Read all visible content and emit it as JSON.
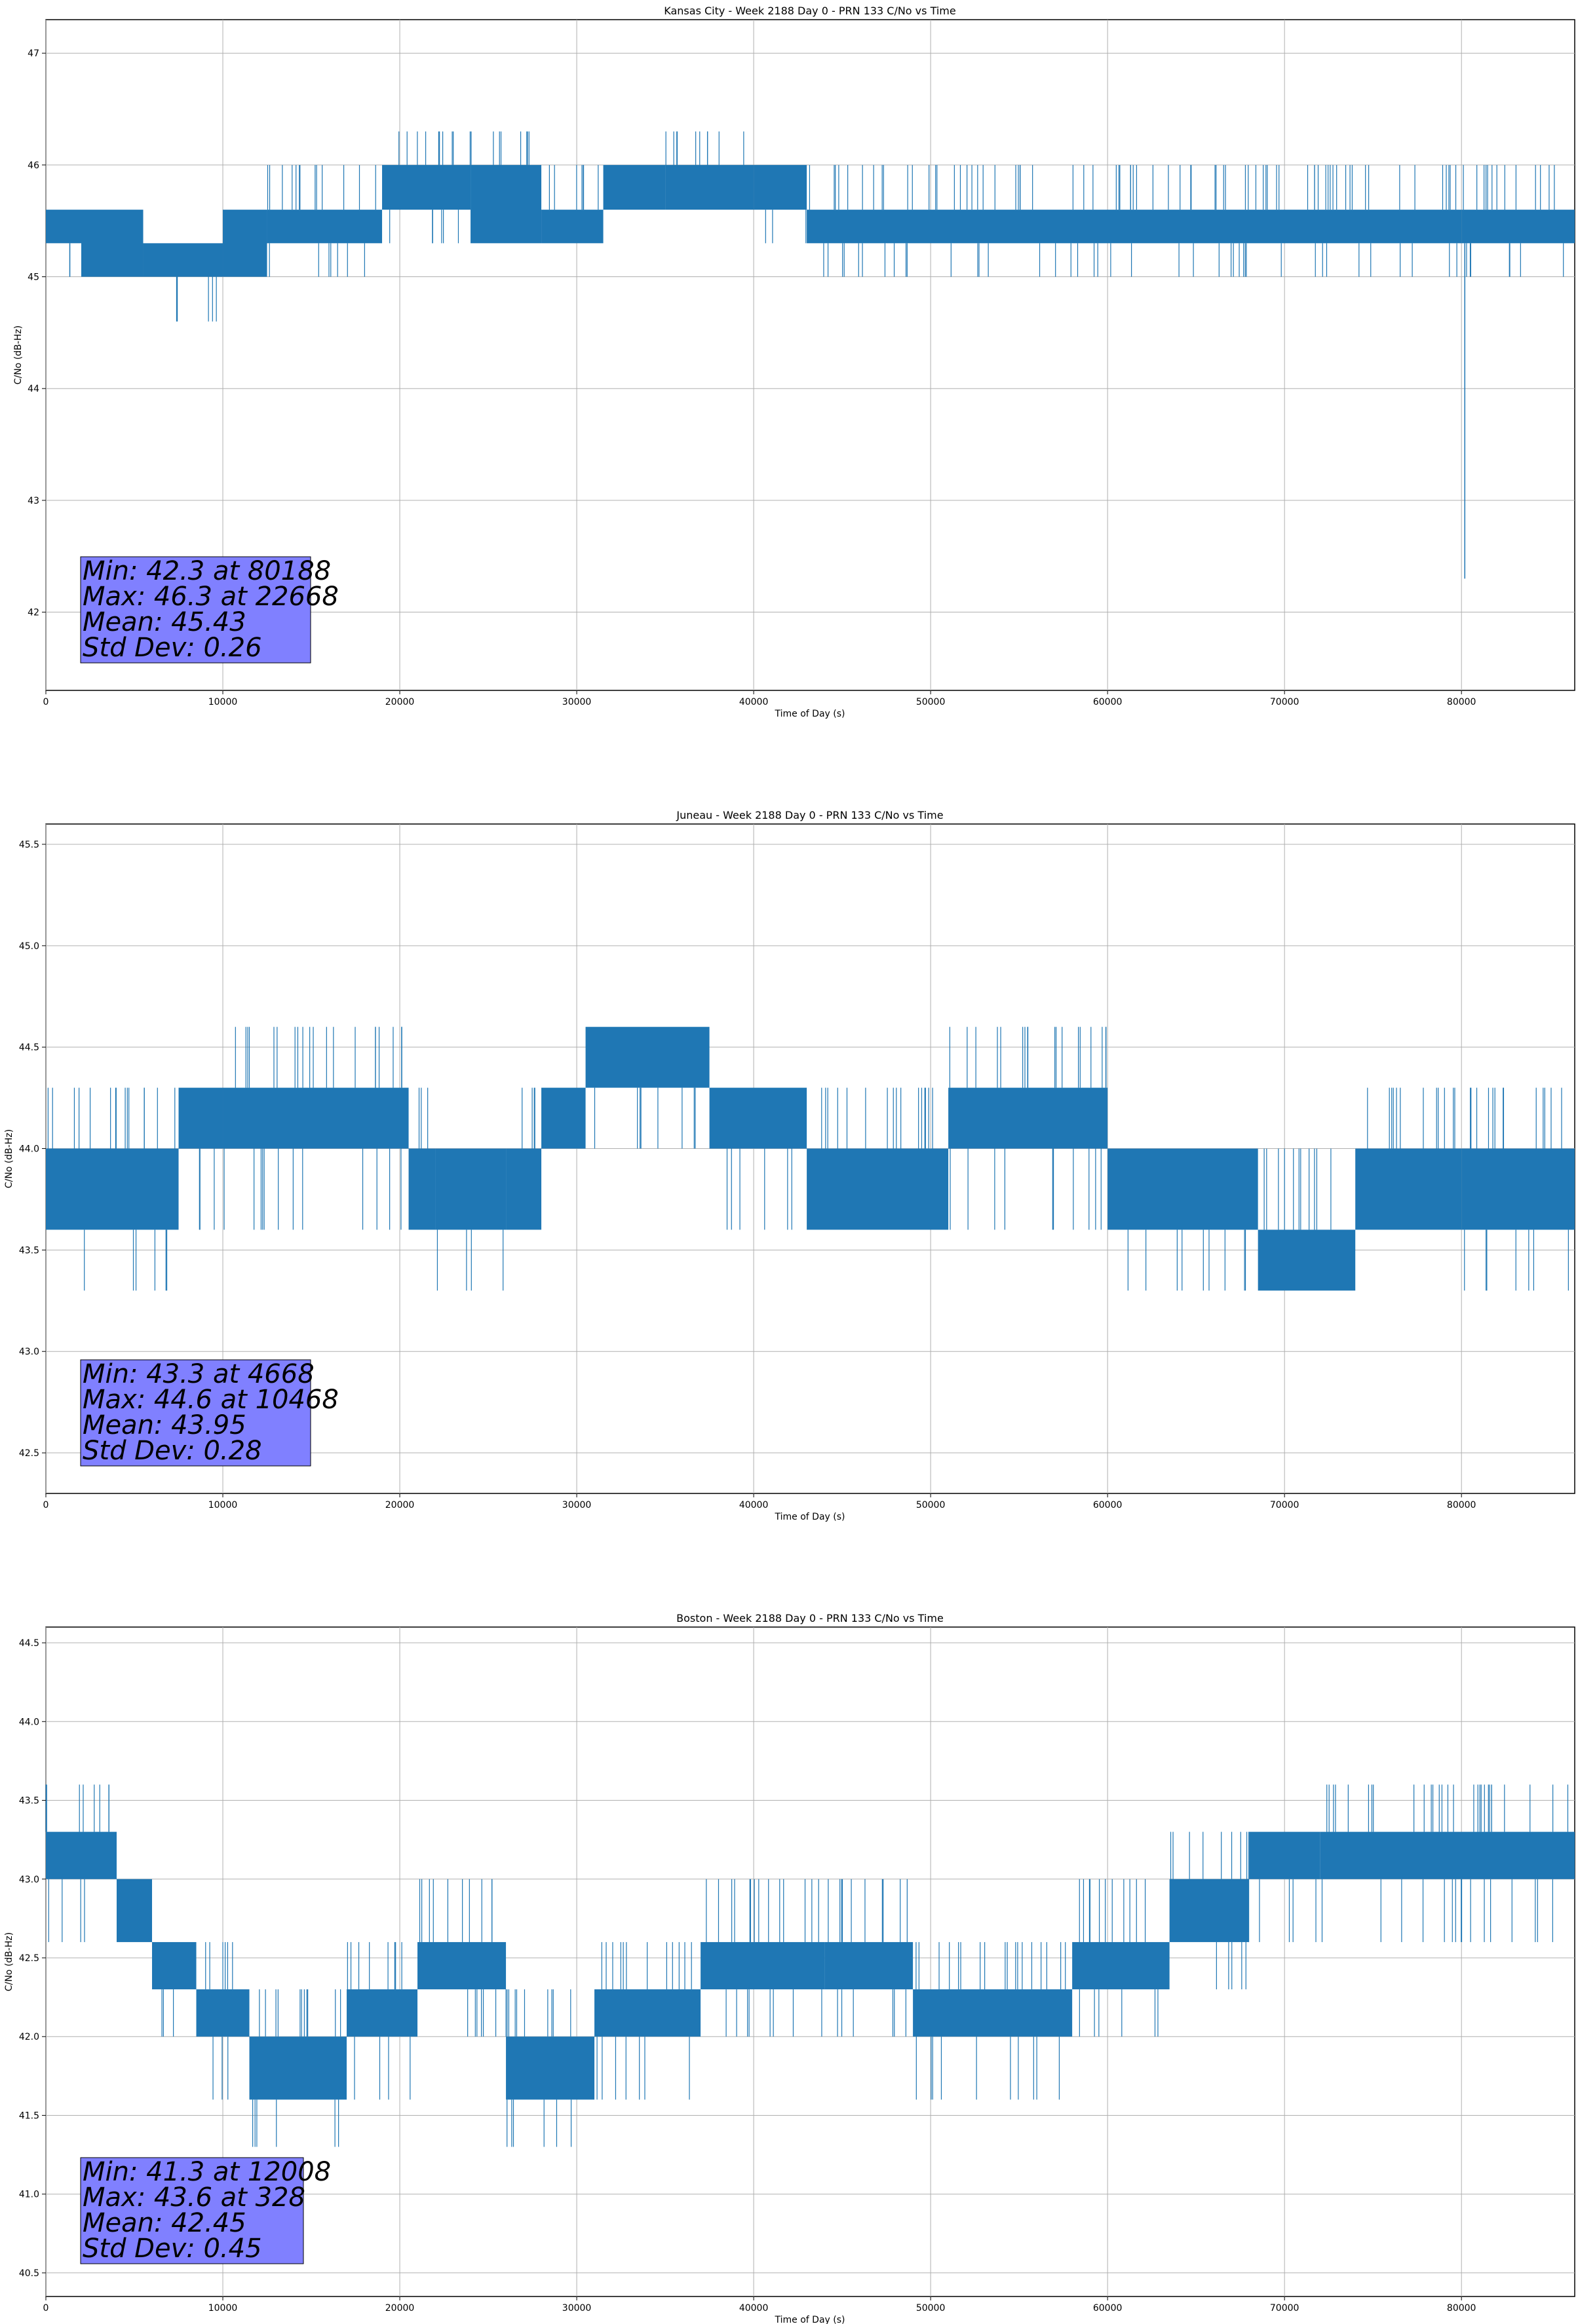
{
  "chart_data": [
    {
      "type": "line",
      "title": "Kansas City - Week 2188 Day 0 - PRN 133 C/No vs Time",
      "xlabel": "Time of Day (s)",
      "ylabel": "C/No (dB-Hz)",
      "xlim": [
        0,
        86400
      ],
      "ylim": [
        41.3,
        47.3
      ],
      "xticks": [
        0,
        10000,
        20000,
        30000,
        40000,
        50000,
        60000,
        70000,
        80000
      ],
      "yticks": [
        42,
        43,
        44,
        45,
        46,
        47
      ],
      "ytick_decimals": 0,
      "grid": true,
      "color": "#1f77b4",
      "series": [
        {
          "name": "C/No",
          "bands": [
            {
              "x": [
                0,
                2000
              ],
              "y": [
                45.3,
                45.6
              ],
              "spikes_high": [
                45.6
              ],
              "spikes_low": [
                45.0
              ]
            },
            {
              "x": [
                2000,
                5500
              ],
              "y": [
                45.0,
                45.6
              ],
              "spikes_high": [
                45.6
              ],
              "spikes_low": [
                45.0
              ]
            },
            {
              "x": [
                5500,
                10000
              ],
              "y": [
                45.0,
                45.3
              ],
              "spikes_high": [
                45.3
              ],
              "spikes_low": [
                44.6,
                45.0
              ]
            },
            {
              "x": [
                10000,
                12500
              ],
              "y": [
                45.0,
                45.6
              ],
              "spikes_high": [
                45.6
              ],
              "spikes_low": [
                45.0
              ]
            },
            {
              "x": [
                12500,
                19000
              ],
              "y": [
                45.3,
                45.6
              ],
              "spikes_high": [
                45.6,
                46.0
              ],
              "spikes_low": [
                45.0
              ]
            },
            {
              "x": [
                19000,
                24000
              ],
              "y": [
                45.6,
                46.0
              ],
              "spikes_high": [
                46.0,
                46.3
              ],
              "spikes_low": [
                45.3
              ]
            },
            {
              "x": [
                24000,
                28000
              ],
              "y": [
                45.3,
                46.0
              ],
              "spikes_high": [
                46.0,
                46.3
              ],
              "spikes_low": [
                45.3
              ]
            },
            {
              "x": [
                28000,
                31500
              ],
              "y": [
                45.3,
                45.6
              ],
              "spikes_high": [
                45.6,
                46.0
              ],
              "spikes_low": [
                45.3
              ]
            },
            {
              "x": [
                31500,
                35000
              ],
              "y": [
                45.6,
                46.0
              ],
              "spikes_high": [
                46.0
              ],
              "spikes_low": [
                45.6
              ]
            },
            {
              "x": [
                35000,
                40000
              ],
              "y": [
                45.6,
                46.0
              ],
              "spikes_high": [
                46.3
              ],
              "spikes_low": [
                45.6
              ]
            },
            {
              "x": [
                40000,
                43000
              ],
              "y": [
                45.6,
                46.0
              ],
              "spikes_high": [
                46.0
              ],
              "spikes_low": [
                45.3
              ]
            },
            {
              "x": [
                43000,
                80000
              ],
              "y": [
                45.3,
                45.6
              ],
              "spikes_high": [
                45.6,
                46.0
              ],
              "spikes_low": [
                45.0
              ]
            },
            {
              "x": [
                80000,
                86400
              ],
              "y": [
                45.3,
                45.6
              ],
              "spikes_high": [
                45.6,
                46.0
              ],
              "spikes_low": [
                45.0
              ]
            }
          ],
          "spikes": [
            {
              "x": 80188,
              "y": 42.3
            }
          ]
        }
      ],
      "stats": {
        "min": "Min: 42.3 at 80188",
        "max": "Max: 46.3 at 22668",
        "mean": "Mean: 45.43",
        "std": "Std Dev: 0.26"
      }
    },
    {
      "type": "line",
      "title": "Juneau - Week 2188 Day 0 - PRN 133 C/No vs Time",
      "xlabel": "Time of Day (s)",
      "ylabel": "C/No (dB-Hz)",
      "xlim": [
        0,
        86400
      ],
      "ylim": [
        42.3,
        45.6
      ],
      "xticks": [
        0,
        10000,
        20000,
        30000,
        40000,
        50000,
        60000,
        70000,
        80000
      ],
      "yticks": [
        42.5,
        43.0,
        43.5,
        44.0,
        44.5,
        45.0,
        45.5
      ],
      "ytick_decimals": 1,
      "grid": true,
      "color": "#1f77b4",
      "series": [
        {
          "name": "C/No",
          "bands": [
            {
              "x": [
                0,
                2000
              ],
              "y": [
                43.6,
                44.0
              ],
              "spikes_high": [
                44.3
              ],
              "spikes_low": [
                43.6
              ]
            },
            {
              "x": [
                2000,
                7500
              ],
              "y": [
                43.6,
                44.0
              ],
              "spikes_high": [
                44.3
              ],
              "spikes_low": [
                43.3
              ]
            },
            {
              "x": [
                7500,
                10000
              ],
              "y": [
                44.0,
                44.3
              ],
              "spikes_high": [
                44.3
              ],
              "spikes_low": [
                43.6
              ]
            },
            {
              "x": [
                10000,
                20500
              ],
              "y": [
                44.0,
                44.3
              ],
              "spikes_high": [
                44.6
              ],
              "spikes_low": [
                43.6
              ]
            },
            {
              "x": [
                20500,
                22000
              ],
              "y": [
                43.6,
                44.0
              ],
              "spikes_high": [
                44.3
              ],
              "spikes_low": [
                43.6
              ]
            },
            {
              "x": [
                22000,
                26000
              ],
              "y": [
                43.6,
                44.0
              ],
              "spikes_high": [
                44.0
              ],
              "spikes_low": [
                43.3
              ]
            },
            {
              "x": [
                26000,
                28000
              ],
              "y": [
                43.6,
                44.0
              ],
              "spikes_high": [
                44.3
              ],
              "spikes_low": [
                43.6
              ]
            },
            {
              "x": [
                28000,
                30500
              ],
              "y": [
                44.0,
                44.3
              ],
              "spikes_high": [
                44.3
              ],
              "spikes_low": [
                44.0
              ]
            },
            {
              "x": [
                30500,
                37500
              ],
              "y": [
                44.3,
                44.6
              ],
              "spikes_high": [
                44.6
              ],
              "spikes_low": [
                44.0
              ]
            },
            {
              "x": [
                37500,
                43000
              ],
              "y": [
                44.0,
                44.3
              ],
              "spikes_high": [
                44.3
              ],
              "spikes_low": [
                43.6
              ]
            },
            {
              "x": [
                43000,
                51000
              ],
              "y": [
                43.6,
                44.0
              ],
              "spikes_high": [
                44.3
              ],
              "spikes_low": [
                43.6
              ]
            },
            {
              "x": [
                51000,
                60000
              ],
              "y": [
                44.0,
                44.3
              ],
              "spikes_high": [
                44.3,
                44.6
              ],
              "spikes_low": [
                43.6
              ]
            },
            {
              "x": [
                60000,
                68500
              ],
              "y": [
                43.6,
                44.0
              ],
              "spikes_high": [
                44.0
              ],
              "spikes_low": [
                43.3
              ]
            },
            {
              "x": [
                68500,
                74000
              ],
              "y": [
                43.3,
                43.6
              ],
              "spikes_high": [
                44.0
              ],
              "spikes_low": [
                43.3
              ]
            },
            {
              "x": [
                74000,
                80000
              ],
              "y": [
                43.6,
                44.0
              ],
              "spikes_high": [
                44.3
              ],
              "spikes_low": [
                43.6
              ]
            },
            {
              "x": [
                80000,
                86400
              ],
              "y": [
                43.6,
                44.0
              ],
              "spikes_high": [
                44.3
              ],
              "spikes_low": [
                43.3
              ]
            }
          ],
          "spikes": []
        }
      ],
      "stats": {
        "min": "Min: 43.3 at 4668",
        "max": "Max: 44.6 at 10468",
        "mean": "Mean: 43.95",
        "std": "Std Dev: 0.28"
      }
    },
    {
      "type": "line",
      "title": "Boston - Week 2188 Day 0 - PRN 133 C/No vs Time",
      "xlabel": "Time of Day (s)",
      "ylabel": "C/No (dB-Hz)",
      "xlim": [
        0,
        86400
      ],
      "ylim": [
        40.35,
        44.6
      ],
      "xticks": [
        0,
        10000,
        20000,
        30000,
        40000,
        50000,
        60000,
        70000,
        80000
      ],
      "yticks": [
        40.5,
        41.0,
        41.5,
        42.0,
        42.5,
        43.0,
        43.5,
        44.0,
        44.5
      ],
      "ytick_decimals": 1,
      "grid": true,
      "color": "#1f77b4",
      "series": [
        {
          "name": "C/No",
          "bands": [
            {
              "x": [
                0,
                4000
              ],
              "y": [
                43.0,
                43.3
              ],
              "spikes_high": [
                43.3,
                43.6
              ],
              "spikes_low": [
                42.6
              ]
            },
            {
              "x": [
                4000,
                6000
              ],
              "y": [
                42.6,
                43.0
              ],
              "spikes_high": [
                43.0
              ],
              "spikes_low": [
                42.6
              ]
            },
            {
              "x": [
                6000,
                8500
              ],
              "y": [
                42.3,
                42.6
              ],
              "spikes_high": [
                42.6
              ],
              "spikes_low": [
                42.0
              ]
            },
            {
              "x": [
                8500,
                11500
              ],
              "y": [
                42.0,
                42.3
              ],
              "spikes_high": [
                42.6
              ],
              "spikes_low": [
                41.6
              ]
            },
            {
              "x": [
                11500,
                17000
              ],
              "y": [
                41.6,
                42.0
              ],
              "spikes_high": [
                42.3
              ],
              "spikes_low": [
                41.3
              ]
            },
            {
              "x": [
                17000,
                21000
              ],
              "y": [
                42.0,
                42.3
              ],
              "spikes_high": [
                42.6
              ],
              "spikes_low": [
                41.6
              ]
            },
            {
              "x": [
                21000,
                26000
              ],
              "y": [
                42.3,
                42.6
              ],
              "spikes_high": [
                43.0
              ],
              "spikes_low": [
                42.0
              ]
            },
            {
              "x": [
                26000,
                31000
              ],
              "y": [
                41.6,
                42.0
              ],
              "spikes_high": [
                42.3
              ],
              "spikes_low": [
                41.3
              ]
            },
            {
              "x": [
                31000,
                37000
              ],
              "y": [
                42.0,
                42.3
              ],
              "spikes_high": [
                42.6
              ],
              "spikes_low": [
                41.6
              ]
            },
            {
              "x": [
                37000,
                44000
              ],
              "y": [
                42.3,
                42.6
              ],
              "spikes_high": [
                43.0
              ],
              "spikes_low": [
                42.0
              ]
            },
            {
              "x": [
                44000,
                49000
              ],
              "y": [
                42.3,
                42.6
              ],
              "spikes_high": [
                43.0
              ],
              "spikes_low": [
                42.0
              ]
            },
            {
              "x": [
                49000,
                58000
              ],
              "y": [
                42.0,
                42.3
              ],
              "spikes_high": [
                42.6
              ],
              "spikes_low": [
                41.6
              ]
            },
            {
              "x": [
                58000,
                63500
              ],
              "y": [
                42.3,
                42.6
              ],
              "spikes_high": [
                43.0
              ],
              "spikes_low": [
                42.0
              ]
            },
            {
              "x": [
                63500,
                68000
              ],
              "y": [
                42.6,
                43.0
              ],
              "spikes_high": [
                43.3
              ],
              "spikes_low": [
                42.3
              ]
            },
            {
              "x": [
                68000,
                72000
              ],
              "y": [
                43.0,
                43.3
              ],
              "spikes_high": [
                43.3
              ],
              "spikes_low": [
                42.6
              ]
            },
            {
              "x": [
                72000,
                86400
              ],
              "y": [
                43.0,
                43.3
              ],
              "spikes_high": [
                43.3,
                43.6
              ],
              "spikes_low": [
                42.6
              ]
            }
          ],
          "spikes": []
        }
      ],
      "stats": {
        "min": "Min: 41.3 at 12008",
        "max": "Max: 43.6 at 328",
        "mean": "Mean: 42.45",
        "std": "Std Dev: 0.45"
      }
    }
  ]
}
